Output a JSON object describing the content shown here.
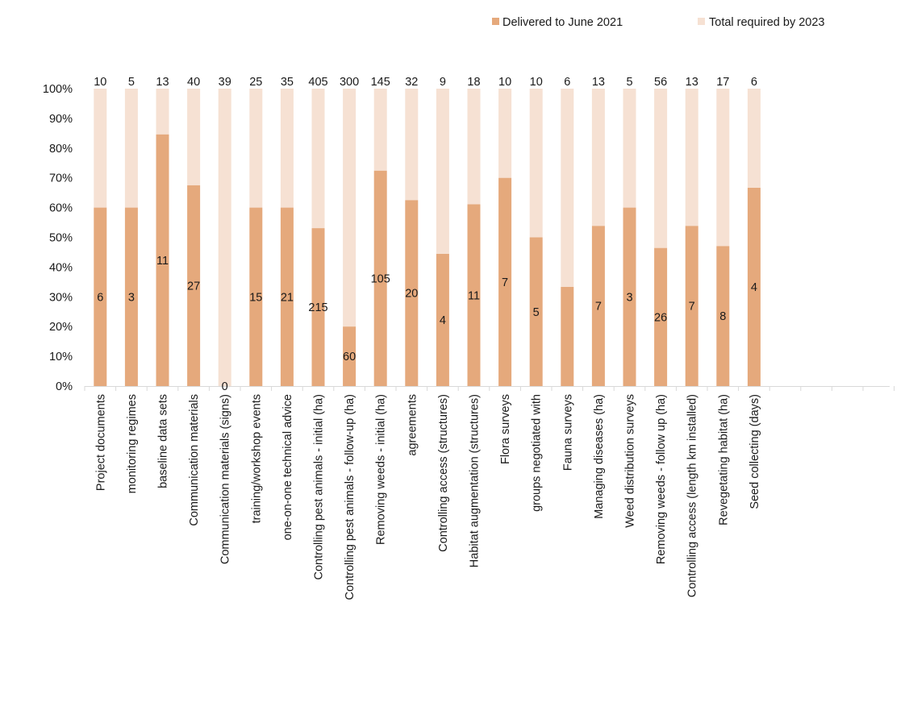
{
  "chart_data": {
    "type": "bar",
    "stacked": "percent",
    "ylim": [
      0,
      100
    ],
    "y_ticks": [
      "0%",
      "10%",
      "20%",
      "30%",
      "40%",
      "50%",
      "60%",
      "70%",
      "80%",
      "90%",
      "100%"
    ],
    "grid": false,
    "legend_position": "top-right",
    "categories": [
      "Project documents",
      "monitoring regimes",
      "baseline data sets",
      "Communication materials",
      "Communication materials (signs)",
      "training/workshop events",
      "one-on-one technical advice",
      "Controlling pest animals - initial (ha)",
      "Controlling pest animals - follow-up (ha)",
      "Removing weeds - initial (ha)",
      "agreements",
      "Controlling access (structures)",
      "Habitat augmentation (structures)",
      "Flora surveys",
      "groups negotiated with",
      "Fauna surveys",
      "Managing diseases (ha)",
      "Weed distribution surveys",
      "Removing weeds - follow up (ha)",
      "Controlling access (length km installed)",
      "Revegetating habitat (ha)",
      "Seed collecting (days)"
    ],
    "series": [
      {
        "name": "Delivered to June 2021",
        "color": "#e5a97c",
        "values": [
          6,
          3,
          11,
          27,
          0,
          15,
          21,
          215,
          60,
          105,
          20,
          4,
          11,
          7,
          5,
          2,
          7,
          3,
          26,
          7,
          8,
          4
        ],
        "labels": [
          "6",
          "3",
          "11",
          "27",
          "0",
          "15",
          "21",
          "215",
          "60",
          "105",
          "20",
          "4",
          "11",
          "7",
          "5",
          "",
          "7",
          "3",
          "26",
          "7",
          "8",
          "4"
        ]
      },
      {
        "name": "Total required by 2023",
        "color": "#f6e1d3",
        "values": [
          10,
          5,
          13,
          40,
          39,
          25,
          35,
          405,
          300,
          145,
          32,
          9,
          18,
          10,
          10,
          6,
          13,
          5,
          56,
          13,
          17,
          6
        ],
        "labels": [
          "10",
          "5",
          "13",
          "40",
          "39",
          "25",
          "35",
          "405",
          "300",
          "145",
          "32",
          "9",
          "18",
          "10",
          "10",
          "6",
          "13",
          "5",
          "56",
          "13",
          "17",
          "6"
        ]
      }
    ]
  }
}
